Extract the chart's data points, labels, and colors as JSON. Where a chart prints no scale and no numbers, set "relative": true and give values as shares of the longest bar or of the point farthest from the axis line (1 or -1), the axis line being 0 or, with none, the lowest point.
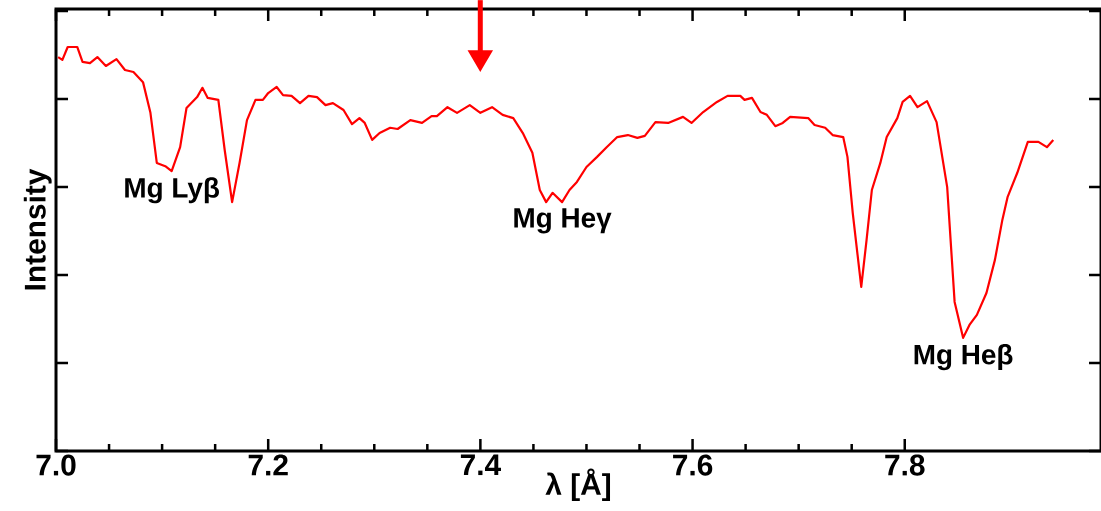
{
  "chart_data": {
    "type": "line",
    "relative": true,
    "xlabel": "λ [Å]",
    "ylabel": "Intensity",
    "xlim": [
      7.0,
      7.985
    ],
    "xticks": [
      {
        "value": 7.0,
        "label": "7.0"
      },
      {
        "value": 7.2,
        "label": "7.2"
      },
      {
        "value": 7.4,
        "label": "7.4"
      },
      {
        "value": 7.6,
        "label": "7.6"
      },
      {
        "value": 7.8,
        "label": "7.8"
      }
    ],
    "tick_labels": "x",
    "annotations": [
      {
        "text": "Mg Lyβ",
        "x": 7.109,
        "y": 0.693
      },
      {
        "text": "Mg Heγ",
        "x": 7.477,
        "y": 0.616
      },
      {
        "text": "Mg Heβ",
        "x": 7.855,
        "y": 0.28
      }
    ],
    "series": [
      {
        "color": "#ff0000",
        "x": [
          7.002,
          7.006,
          7.011,
          7.02,
          7.025,
          7.032,
          7.039,
          7.047,
          7.057,
          7.065,
          7.073,
          7.082,
          7.089,
          7.095,
          7.103,
          7.109,
          7.117,
          7.123,
          7.133,
          7.138,
          7.143,
          7.153,
          7.159,
          7.166,
          7.173,
          7.18,
          7.188,
          7.195,
          7.2,
          7.208,
          7.214,
          7.222,
          7.23,
          7.238,
          7.246,
          7.254,
          7.261,
          7.271,
          7.279,
          7.286,
          7.291,
          7.298,
          7.305,
          7.315,
          7.322,
          7.334,
          7.345,
          7.354,
          7.359,
          7.369,
          7.378,
          7.39,
          7.4,
          7.411,
          7.421,
          7.431,
          7.44,
          7.449,
          7.456,
          7.462,
          7.468,
          7.477,
          7.484,
          7.491,
          7.5,
          7.51,
          7.519,
          7.529,
          7.539,
          7.548,
          7.555,
          7.565,
          7.577,
          7.591,
          7.599,
          7.61,
          7.623,
          7.633,
          7.645,
          7.649,
          7.656,
          7.664,
          7.67,
          7.678,
          7.685,
          7.692,
          7.709,
          7.715,
          7.725,
          7.732,
          7.742,
          7.746,
          7.751,
          7.759,
          7.764,
          7.769,
          7.777,
          7.783,
          7.793,
          7.798,
          7.805,
          7.812,
          7.821,
          7.83,
          7.84,
          7.847,
          7.855,
          7.861,
          7.868,
          7.877,
          7.885,
          7.892,
          7.897,
          7.906,
          7.916,
          7.926,
          7.934,
          7.94
        ],
        "values": [
          0.975,
          0.968,
          1.0,
          1.0,
          0.963,
          0.96,
          0.975,
          0.953,
          0.97,
          0.943,
          0.938,
          0.913,
          0.837,
          0.713,
          0.705,
          0.693,
          0.752,
          0.849,
          0.876,
          0.899,
          0.874,
          0.869,
          0.745,
          0.616,
          0.713,
          0.819,
          0.869,
          0.869,
          0.886,
          0.901,
          0.881,
          0.879,
          0.861,
          0.879,
          0.876,
          0.856,
          0.861,
          0.844,
          0.809,
          0.824,
          0.812,
          0.77,
          0.787,
          0.8,
          0.797,
          0.819,
          0.812,
          0.829,
          0.829,
          0.851,
          0.837,
          0.856,
          0.837,
          0.851,
          0.832,
          0.824,
          0.787,
          0.738,
          0.646,
          0.616,
          0.639,
          0.616,
          0.646,
          0.666,
          0.703,
          0.728,
          0.752,
          0.777,
          0.782,
          0.775,
          0.78,
          0.814,
          0.812,
          0.827,
          0.812,
          0.839,
          0.864,
          0.879,
          0.879,
          0.869,
          0.874,
          0.839,
          0.832,
          0.804,
          0.812,
          0.827,
          0.824,
          0.807,
          0.8,
          0.782,
          0.777,
          0.728,
          0.589,
          0.406,
          0.522,
          0.646,
          0.713,
          0.777,
          0.824,
          0.864,
          0.879,
          0.851,
          0.866,
          0.814,
          0.653,
          0.369,
          0.28,
          0.312,
          0.337,
          0.391,
          0.473,
          0.572,
          0.629,
          0.688,
          0.765,
          0.765,
          0.752,
          0.77
        ]
      }
    ]
  }
}
